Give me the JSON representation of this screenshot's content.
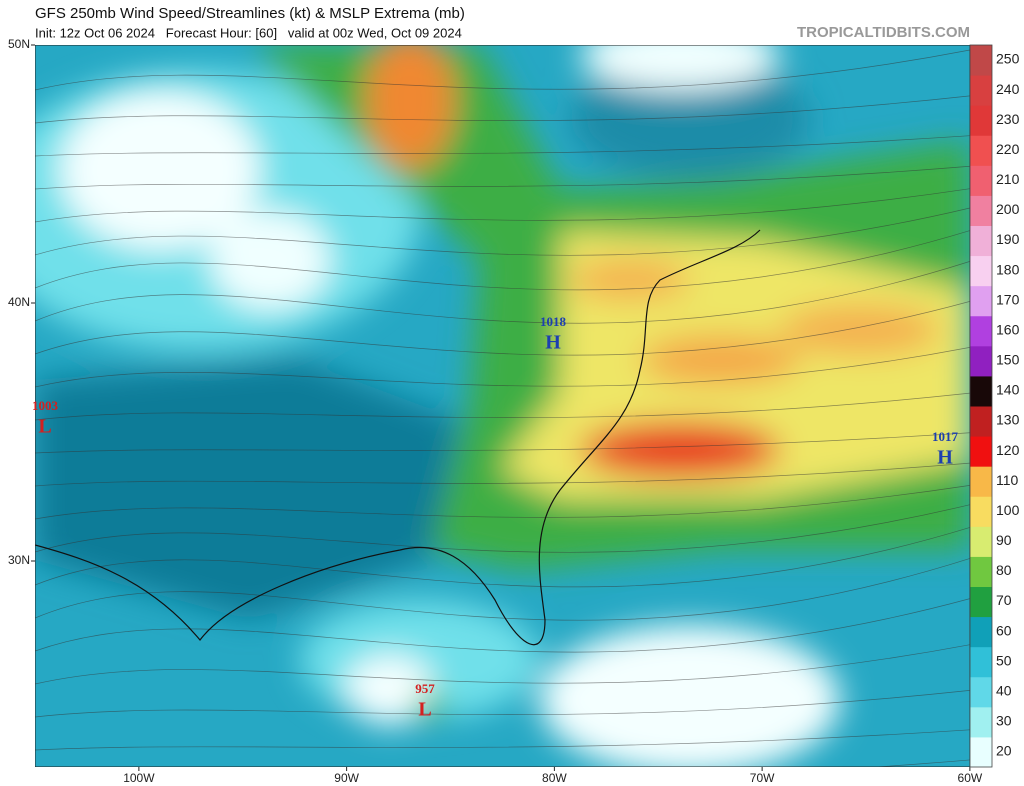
{
  "header": {
    "title": "GFS 250mb Wind Speed/Streamlines (kt) & MSLP Extrema (mb)",
    "subtitle": "Init: 12z Oct 06 2024   Forecast Hour: [60]   valid at 00z Wed, Oct 09 2024",
    "brand": "TROPICALTIDBITS.COM"
  },
  "map": {
    "latticks": [
      {
        "value": 50,
        "label": "50N"
      },
      {
        "value": 40,
        "label": "40N"
      },
      {
        "value": 30,
        "label": "30N"
      }
    ],
    "lonticks": [
      {
        "value": -100,
        "label": "100W"
      },
      {
        "value": -90,
        "label": "90W"
      },
      {
        "value": -80,
        "label": "80W"
      },
      {
        "value": -70,
        "label": "70W"
      },
      {
        "value": -60,
        "label": "60W"
      }
    ]
  },
  "extrema": [
    {
      "pressure": 1003,
      "symbol": "L",
      "color": "#d42020"
    },
    {
      "pressure": 1018,
      "symbol": "H",
      "color": "#1c3fb0"
    },
    {
      "pressure": 1017,
      "symbol": "H",
      "color": "#1c3fb0"
    },
    {
      "pressure": 957,
      "symbol": "L",
      "color": "#d42020"
    }
  ],
  "colorbar": {
    "ticks": [
      20,
      30,
      40,
      50,
      60,
      70,
      80,
      90,
      100,
      110,
      120,
      130,
      140,
      150,
      160,
      170,
      180,
      190,
      200,
      210,
      220,
      230,
      240,
      250
    ],
    "colors": [
      "#e8ffff",
      "#a0f0f0",
      "#60d8e8",
      "#30c0d8",
      "#10a0b8",
      "#20a040",
      "#70c840",
      "#d8ec70",
      "#f8dc60",
      "#f8b848",
      "#f01010",
      "#c02020",
      "#180808",
      "#9020c0",
      "#b040e0",
      "#e0a0f0",
      "#f8d0f0",
      "#f0b0d8",
      "#f080a0",
      "#f06070",
      "#f05050",
      "#e03838",
      "#d84040",
      "#c04848"
    ]
  }
}
